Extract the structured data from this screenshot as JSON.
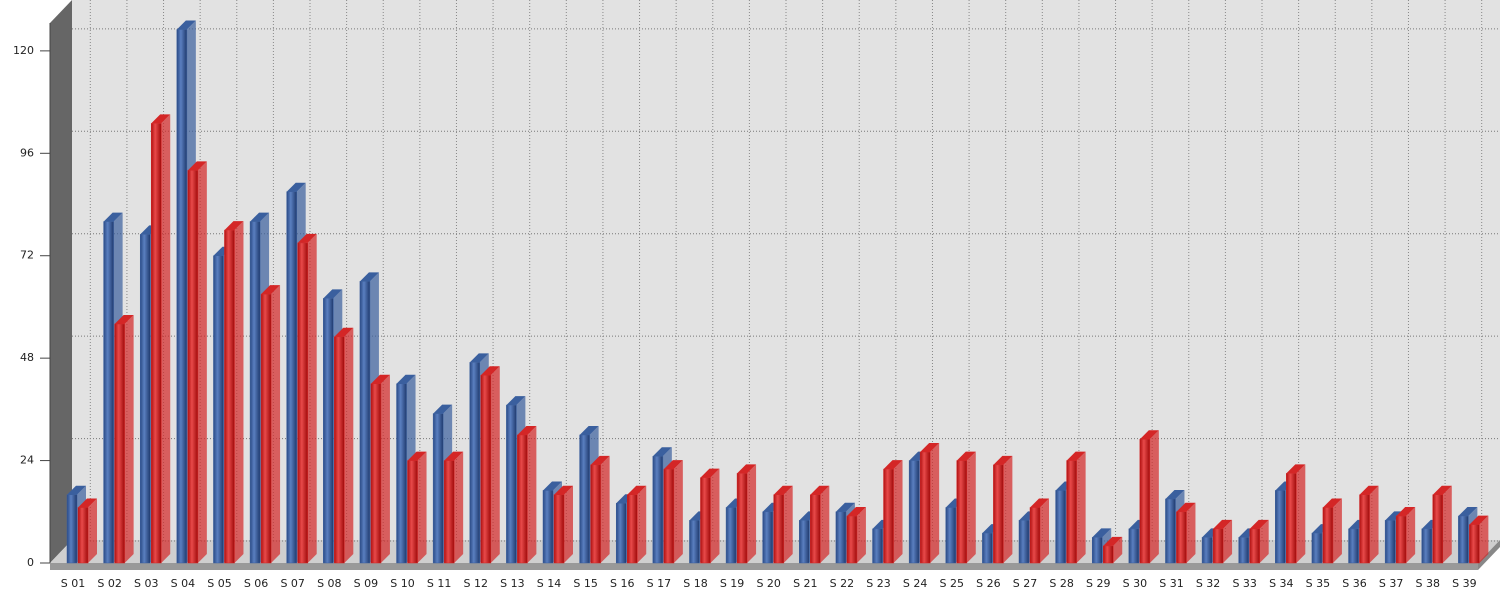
{
  "chart_data": {
    "type": "bar3d",
    "categories": [
      "S 01",
      "S 02",
      "S 03",
      "S 04",
      "S 05",
      "S 06",
      "S 07",
      "S 08",
      "S 09",
      "S 10",
      "S 11",
      "S 12",
      "S 13",
      "S 14",
      "S 15",
      "S 16",
      "S 17",
      "S 18",
      "S 19",
      "S 20",
      "S 21",
      "S 22",
      "S 23",
      "S 24",
      "S 25",
      "S 26",
      "S 27",
      "S 28",
      "S 29",
      "S 30",
      "S 31",
      "S 32",
      "S 33",
      "S 34",
      "S 35",
      "S 36",
      "S 37",
      "S 38",
      "S 39"
    ],
    "series": [
      {
        "color": "#3a5f9e",
        "values": [
          16,
          80,
          77,
          125,
          72,
          80,
          87,
          62,
          66,
          42,
          35,
          47,
          37,
          17,
          30,
          14,
          25,
          10,
          13,
          12,
          10,
          12,
          8,
          24,
          13,
          7,
          10,
          17,
          6,
          8,
          15,
          6,
          6,
          17,
          7,
          8,
          10,
          8,
          11
        ]
      },
      {
        "color": "#d42626",
        "values": [
          13,
          56,
          103,
          92,
          78,
          63,
          75,
          53,
          42,
          24,
          24,
          44,
          30,
          16,
          23,
          16,
          22,
          20,
          21,
          16,
          16,
          11,
          22,
          26,
          24,
          23,
          13,
          24,
          4,
          29,
          12,
          8,
          8,
          21,
          13,
          16,
          11,
          16,
          9
        ]
      }
    ],
    "ylim": [
      0,
      127
    ],
    "yticks": [
      0,
      24,
      48,
      72,
      96,
      120
    ],
    "grid": true
  }
}
